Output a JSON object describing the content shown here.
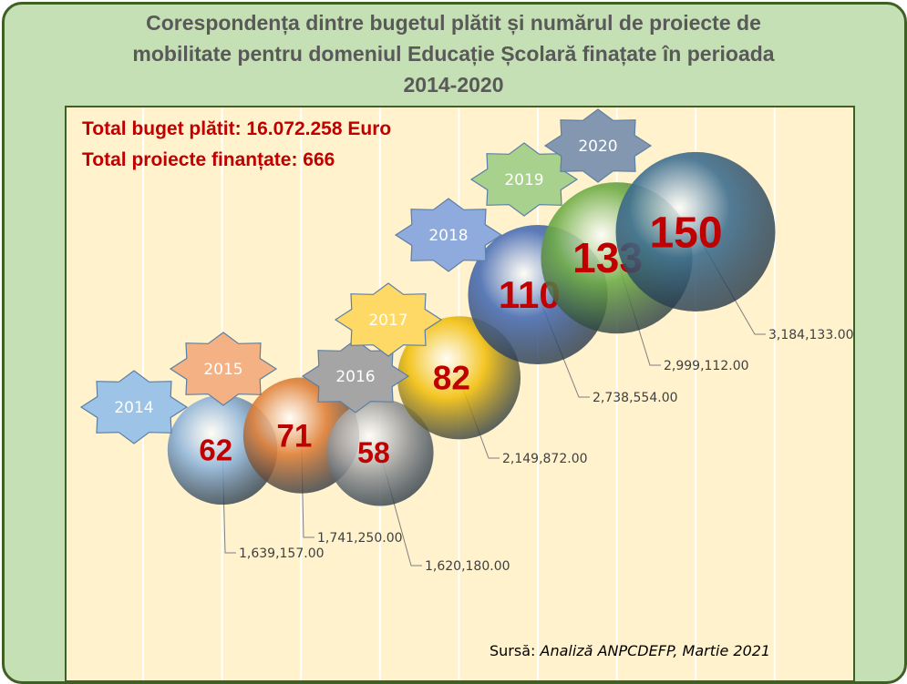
{
  "chart_data": {
    "type": "bubble",
    "title": "Corespondența dintre bugetul plătit și numărul de proiecte de mobilitate pentru domeniul Educație Școlară finațate în perioada 2014-2020",
    "categories": [
      "2014",
      "2015",
      "2016",
      "2017",
      "2018",
      "2019",
      "2020"
    ],
    "series": [
      {
        "name": "Buget plătit (Euro)",
        "values": [
          1639157.0,
          1741250.0,
          1620180.0,
          2149872.0,
          2738554.0,
          2999112.0,
          3184133.0
        ],
        "labels": [
          "1,639,157.00",
          "1,741,250.00",
          "1,620,180.00",
          "2,149,872.00",
          "2,738,554.00",
          "2,999,112.00",
          "3,184,133.00"
        ]
      },
      {
        "name": "Proiecte finanțate",
        "values": [
          62,
          71,
          58,
          82,
          110,
          133,
          150
        ]
      }
    ],
    "colors": [
      "#8fb4d9",
      "#e0813a",
      "#a6a6a6",
      "#f2c010",
      "#4a6eb5",
      "#70ad47",
      "#3f6f90"
    ],
    "star_colors": [
      "#9dc3e6",
      "#f4b183",
      "#a5a5a5",
      "#ffd966",
      "#8faadc",
      "#a9d18e",
      "#8497b0"
    ],
    "grid": true,
    "legend": "none"
  },
  "totals": {
    "budget": "Total buget plătit: 16.072.258 Euro",
    "projects": "Total proiecte finanțate: 666"
  },
  "source": {
    "prefix": "Sursă: ",
    "text": "Analiză ANPCDEFP, Martie 2021"
  }
}
